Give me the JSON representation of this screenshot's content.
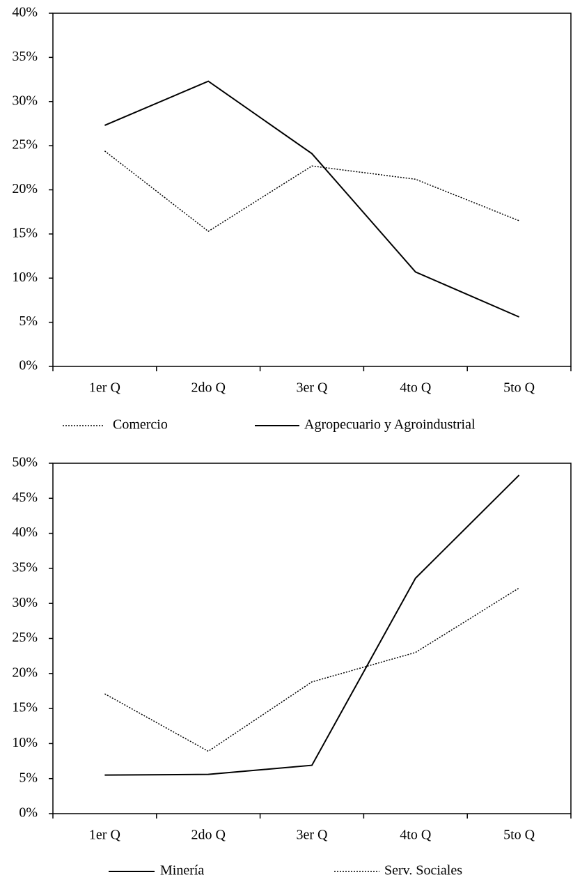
{
  "chart_data": [
    {
      "type": "line",
      "categories": [
        "1er Q",
        "2do Q",
        "3er Q",
        "4to Q",
        "5to Q"
      ],
      "ylim": [
        0,
        40
      ],
      "yticks": [
        {
          "value": 0,
          "label": "0%"
        },
        {
          "value": 5,
          "label": "5%"
        },
        {
          "value": 10,
          "label": "10%"
        },
        {
          "value": 15,
          "label": "15%"
        },
        {
          "value": 20,
          "label": "20%"
        },
        {
          "value": 25,
          "label": "25%"
        },
        {
          "value": 30,
          "label": "30%"
        },
        {
          "value": 35,
          "label": "35%"
        },
        {
          "value": 40,
          "label": "40%"
        }
      ],
      "series": [
        {
          "name": "Comercio",
          "color": "#000000",
          "line_style": "dotted",
          "values": [
            24.4,
            15.3,
            22.7,
            21.2,
            16.5
          ]
        },
        {
          "name": "Agropecuario y Agroindustrial",
          "color": "#000000",
          "line_style": "solid",
          "values": [
            27.3,
            32.3,
            24.1,
            10.7,
            5.6
          ]
        }
      ]
    },
    {
      "type": "line",
      "categories": [
        "1er Q",
        "2do Q",
        "3er Q",
        "4to Q",
        "5to Q"
      ],
      "ylim": [
        0,
        50
      ],
      "yticks": [
        {
          "value": 0,
          "label": "0%"
        },
        {
          "value": 5,
          "label": "5%"
        },
        {
          "value": 10,
          "label": "10%"
        },
        {
          "value": 15,
          "label": "15%"
        },
        {
          "value": 20,
          "label": "20%"
        },
        {
          "value": 25,
          "label": "25%"
        },
        {
          "value": 30,
          "label": "30%"
        },
        {
          "value": 35,
          "label": "35%"
        },
        {
          "value": 40,
          "label": "40%"
        },
        {
          "value": 45,
          "label": "45%"
        },
        {
          "value": 50,
          "label": "50%"
        }
      ],
      "series": [
        {
          "name": "Minería",
          "color": "#000000",
          "line_style": "solid",
          "values": [
            5.5,
            5.6,
            6.9,
            33.6,
            48.3
          ]
        },
        {
          "name": "Serv. Sociales",
          "color": "#000000",
          "line_style": "dotted",
          "values": [
            17.1,
            8.9,
            18.8,
            23.0,
            32.2
          ]
        }
      ]
    }
  ]
}
